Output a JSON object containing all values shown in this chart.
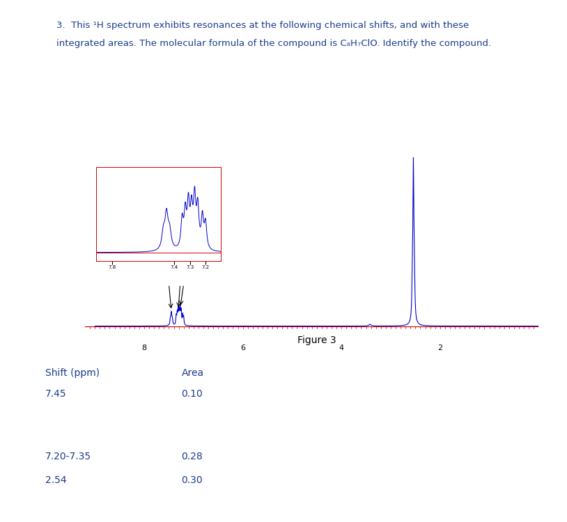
{
  "title_line1": "3.  This ¹H spectrum exhibits resonances at the following chemical shifts, and with these",
  "title_line2": "integrated areas. The molecular formula of the compound is C₈H₇ClO. Identify the compound.",
  "figure_label": "Figure 3",
  "table_headers": [
    "Shift (ppm)",
    "Area"
  ],
  "table_rows": [
    [
      "7.45",
      "0.10"
    ],
    [
      "7.20-7.35",
      "0.28"
    ],
    [
      "2.54",
      "0.30"
    ]
  ],
  "spectrum_color": "#0000cc",
  "baseline_color": "#cc0000",
  "bg_color": "#ffffff",
  "text_color": "#1a3a8c",
  "divider_color": "#c0c0c0"
}
